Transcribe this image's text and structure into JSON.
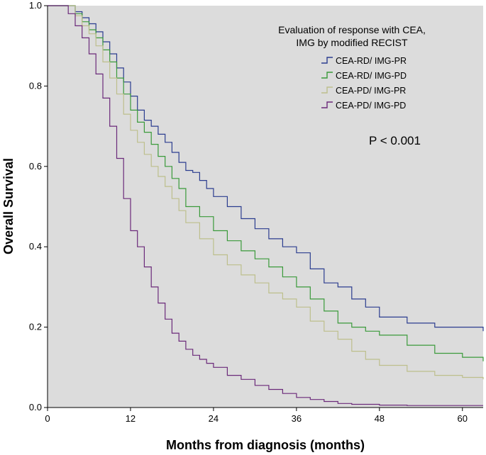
{
  "chart_data": {
    "type": "line",
    "subtype": "kaplan-meier step",
    "title": "",
    "xlabel": "Months from diagnosis (months)",
    "ylabel": "Overall Survival",
    "xlim": [
      0,
      63
    ],
    "ylim": [
      0,
      1.0
    ],
    "x_ticks": [
      0,
      12,
      24,
      36,
      48,
      60
    ],
    "y_ticks": [
      0.0,
      0.2,
      0.4,
      0.6,
      0.8,
      1.0
    ],
    "x_tick_labels": [
      "0",
      "12",
      "24",
      "36",
      "48",
      "60"
    ],
    "y_tick_labels": [
      "0.0",
      "0.2",
      "0.4",
      "0.6",
      "0.8",
      "1.0"
    ],
    "legend_title": [
      "Evaluation of response with CEA,",
      "IMG by modified RECIST"
    ],
    "legend_position": "top-right",
    "annotation": "P < 0.001",
    "background": "#dcdcdc",
    "series": [
      {
        "name": "CEA-RD/ IMG-PR",
        "color": "#2b3d8f",
        "x": [
          0,
          3,
          4,
          5,
          6,
          7,
          8,
          9,
          10,
          11,
          12,
          13,
          14,
          15,
          16,
          17,
          18,
          19,
          20,
          21,
          22,
          23,
          24,
          26,
          28,
          30,
          32,
          34,
          36,
          38,
          40,
          42,
          44,
          46,
          48,
          52,
          56,
          60,
          63
        ],
        "values": [
          1.0,
          1.0,
          0.985,
          0.97,
          0.955,
          0.935,
          0.91,
          0.88,
          0.845,
          0.81,
          0.775,
          0.74,
          0.715,
          0.7,
          0.68,
          0.66,
          0.635,
          0.61,
          0.59,
          0.585,
          0.565,
          0.545,
          0.525,
          0.5,
          0.47,
          0.445,
          0.42,
          0.4,
          0.385,
          0.345,
          0.31,
          0.3,
          0.27,
          0.25,
          0.225,
          0.21,
          0.2,
          0.2,
          0.19
        ]
      },
      {
        "name": "CEA-RD/ IMG-PD",
        "color": "#3a9a3a",
        "x": [
          0,
          3,
          4,
          5,
          6,
          7,
          8,
          9,
          10,
          11,
          12,
          13,
          14,
          15,
          16,
          17,
          18,
          19,
          20,
          22,
          24,
          26,
          28,
          30,
          32,
          34,
          36,
          38,
          40,
          42,
          44,
          46,
          48,
          52,
          56,
          60,
          63
        ],
        "values": [
          1.0,
          1.0,
          0.98,
          0.96,
          0.94,
          0.92,
          0.89,
          0.86,
          0.82,
          0.78,
          0.74,
          0.71,
          0.685,
          0.655,
          0.625,
          0.6,
          0.57,
          0.545,
          0.5,
          0.475,
          0.44,
          0.415,
          0.39,
          0.37,
          0.35,
          0.325,
          0.3,
          0.27,
          0.24,
          0.21,
          0.2,
          0.19,
          0.18,
          0.155,
          0.135,
          0.125,
          0.115
        ]
      },
      {
        "name": "CEA-PD/ IMG-PR",
        "color": "#bdbf8c",
        "x": [
          0,
          3,
          4,
          5,
          6,
          7,
          8,
          9,
          10,
          11,
          12,
          13,
          14,
          15,
          16,
          17,
          18,
          19,
          20,
          22,
          24,
          26,
          28,
          30,
          32,
          34,
          36,
          38,
          40,
          42,
          44,
          46,
          48,
          52,
          56,
          60,
          63
        ],
        "values": [
          1.0,
          1.0,
          0.975,
          0.95,
          0.93,
          0.9,
          0.86,
          0.82,
          0.78,
          0.73,
          0.69,
          0.66,
          0.63,
          0.6,
          0.575,
          0.55,
          0.52,
          0.49,
          0.46,
          0.42,
          0.38,
          0.355,
          0.33,
          0.31,
          0.285,
          0.27,
          0.25,
          0.215,
          0.19,
          0.17,
          0.14,
          0.12,
          0.105,
          0.09,
          0.08,
          0.075,
          0.07
        ]
      },
      {
        "name": "CEA-PD/ IMG-PD",
        "color": "#6b2a7a",
        "x": [
          0,
          2.5,
          3,
          4,
          5,
          6,
          7,
          8,
          9,
          10,
          11,
          12,
          13,
          14,
          15,
          16,
          17,
          18,
          19,
          20,
          21,
          22,
          23,
          24,
          26,
          28,
          30,
          32,
          34,
          36,
          38,
          40,
          42,
          44,
          48,
          52,
          56,
          60,
          63
        ],
        "values": [
          1.0,
          1.0,
          0.98,
          0.95,
          0.92,
          0.88,
          0.83,
          0.77,
          0.7,
          0.62,
          0.52,
          0.44,
          0.4,
          0.35,
          0.3,
          0.26,
          0.22,
          0.185,
          0.165,
          0.145,
          0.13,
          0.12,
          0.11,
          0.1,
          0.08,
          0.07,
          0.055,
          0.045,
          0.035,
          0.025,
          0.02,
          0.015,
          0.01,
          0.008,
          0.006,
          0.005,
          0.005,
          0.005,
          0.005
        ]
      }
    ]
  }
}
